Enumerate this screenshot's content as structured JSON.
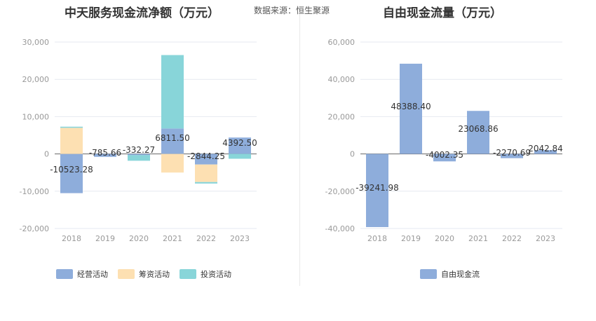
{
  "source_text": "数据来源：恒生聚源",
  "chart_data": [
    {
      "type": "bar",
      "stacked": true,
      "title": "中天服务现金流净额（万元）",
      "categories": [
        "2018",
        "2019",
        "2020",
        "2021",
        "2022",
        "2023"
      ],
      "ylim": [
        -20000,
        30000
      ],
      "yticks": [
        30000,
        20000,
        10000,
        0,
        -10000,
        -20000
      ],
      "ytick_labels": [
        "30,000",
        "20,000",
        "10,000",
        "0",
        "-10,000",
        "-20,000"
      ],
      "grid": true,
      "legend_position": "bottom",
      "series": [
        {
          "name": "经营活动",
          "color": "#8eaddb",
          "values": [
            -10523.28,
            -785.66,
            -332.27,
            6811.5,
            -2844.25,
            4392.5
          ]
        },
        {
          "name": "筹资活动",
          "color": "#fde0b2",
          "values": [
            7000,
            0,
            0,
            -5000,
            -4700,
            0
          ]
        },
        {
          "name": "投资活动",
          "color": "#88d5d9",
          "values": [
            300,
            0,
            -1500,
            19700,
            -400,
            -1300
          ]
        }
      ],
      "data_labels": [
        "-10523.28",
        "-785.66",
        "-332.27",
        "6811.50",
        "-2844.25",
        "4392.50"
      ]
    },
    {
      "type": "bar",
      "title": "自由现金流量（万元）",
      "categories": [
        "2018",
        "2019",
        "2020",
        "2021",
        "2022",
        "2023"
      ],
      "ylim": [
        -40000,
        60000
      ],
      "yticks": [
        60000,
        40000,
        20000,
        0,
        -20000,
        -40000
      ],
      "ytick_labels": [
        "60,000",
        "40,000",
        "20,000",
        "0",
        "-20,000",
        "-40,000"
      ],
      "grid": true,
      "legend_position": "bottom",
      "series": [
        {
          "name": "自由现金流",
          "color": "#8eaddb",
          "values": [
            -39241.98,
            48388.4,
            -4002.35,
            23068.86,
            -2270.69,
            2042.84
          ]
        }
      ],
      "data_labels": [
        "-39241.98",
        "48388.40",
        "-4002.35",
        "23068.86",
        "-2270.69",
        "2042.84"
      ]
    }
  ]
}
